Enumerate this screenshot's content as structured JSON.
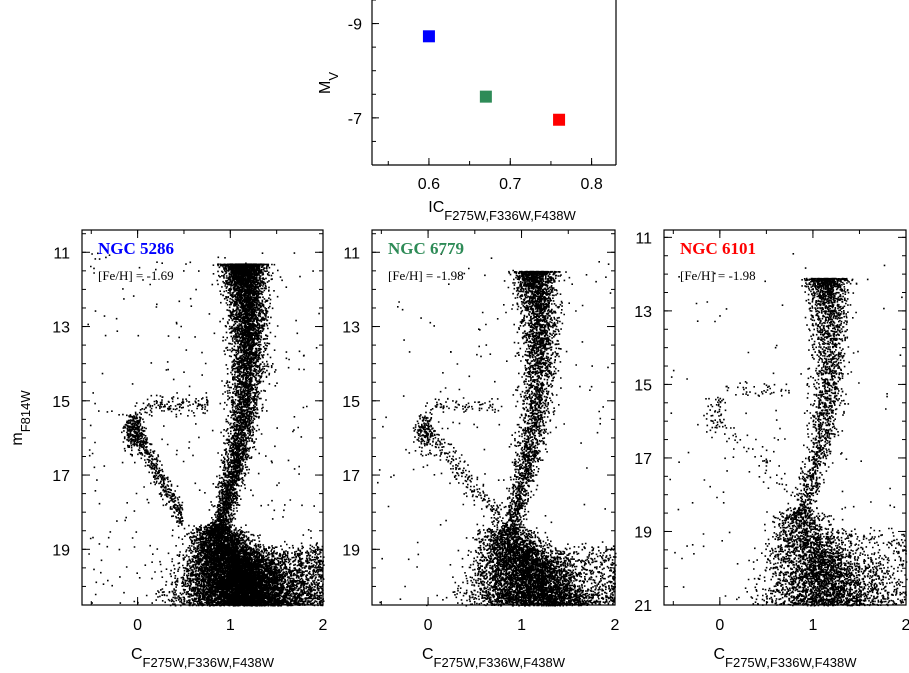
{
  "chart_data": [
    {
      "type": "scatter",
      "xlabel": "IC",
      "xlabel_sub": "F275W,F336W,F438W",
      "ylabel": "M",
      "ylabel_sub": "V",
      "xlim": [
        0.53,
        0.83
      ],
      "ylim": [
        -6.0,
        -9.5
      ],
      "xticks": [
        0.6,
        0.7,
        0.8
      ],
      "xtick_labels": [
        "0.6",
        "0.7",
        "0.8"
      ],
      "yticks": [
        -9,
        -7
      ],
      "ytick_labels": [
        "-9",
        "-7"
      ],
      "points": [
        {
          "x": 0.6,
          "y": -8.73,
          "color": "#0000ff"
        },
        {
          "x": 0.67,
          "y": -7.45,
          "color": "#2e8b57"
        },
        {
          "x": 0.76,
          "y": -6.96,
          "color": "#ff0000"
        }
      ]
    },
    {
      "type": "scatter",
      "title": "NGC 5286",
      "title_color": "#0000ff",
      "annotation": "[Fe/H] = -1.69",
      "xlabel": "C",
      "xlabel_sub": "F275W,F336W,F438W",
      "ylabel": "m",
      "ylabel_sub": "F814W",
      "xlim": [
        -0.6,
        2.0
      ],
      "ylim": [
        20.5,
        10.4
      ],
      "xticks": [
        0,
        1,
        2
      ],
      "xtick_labels": [
        "0",
        "1",
        "2"
      ],
      "yticks": [
        11,
        13,
        15,
        17,
        19
      ],
      "ytick_labels": [
        "11",
        "13",
        "15",
        "17",
        "19"
      ],
      "density": 1.0,
      "hb_red_end": 0.45,
      "trgb": 11.3
    },
    {
      "type": "scatter",
      "title": "NGC 6779",
      "title_color": "#2e8b57",
      "annotation": "[Fe/H] = -1.98",
      "xlabel": "C",
      "xlabel_sub": "F275W,F336W,F438W",
      "xlim": [
        -0.6,
        2.0
      ],
      "ylim": [
        20.5,
        10.4
      ],
      "xticks": [
        0,
        1,
        2
      ],
      "xtick_labels": [
        "0",
        "1",
        "2"
      ],
      "yticks": [
        11,
        13,
        15,
        17,
        19
      ],
      "ytick_labels": [
        "11",
        "13",
        "15",
        "17",
        "19"
      ],
      "density": 0.55,
      "hb_red_end": 0.75,
      "trgb": 11.5
    },
    {
      "type": "scatter",
      "title": "NGC 6101",
      "title_color": "#ff0000",
      "annotation": "[Fe/H] = -1.98",
      "xlabel": "C",
      "xlabel_sub": "F275W,F336W,F438W",
      "xlim": [
        -0.6,
        2.0
      ],
      "ylim": [
        21.0,
        10.8
      ],
      "xticks": [
        0,
        1,
        2
      ],
      "xtick_labels": [
        "0",
        "1",
        "2"
      ],
      "yticks": [
        11,
        13,
        15,
        17,
        19,
        21
      ],
      "ytick_labels": [
        "11",
        "13",
        "15",
        "17",
        "19",
        "21"
      ],
      "density": 0.35,
      "hb_red_end": 0.8,
      "trgb": 12.1
    }
  ]
}
